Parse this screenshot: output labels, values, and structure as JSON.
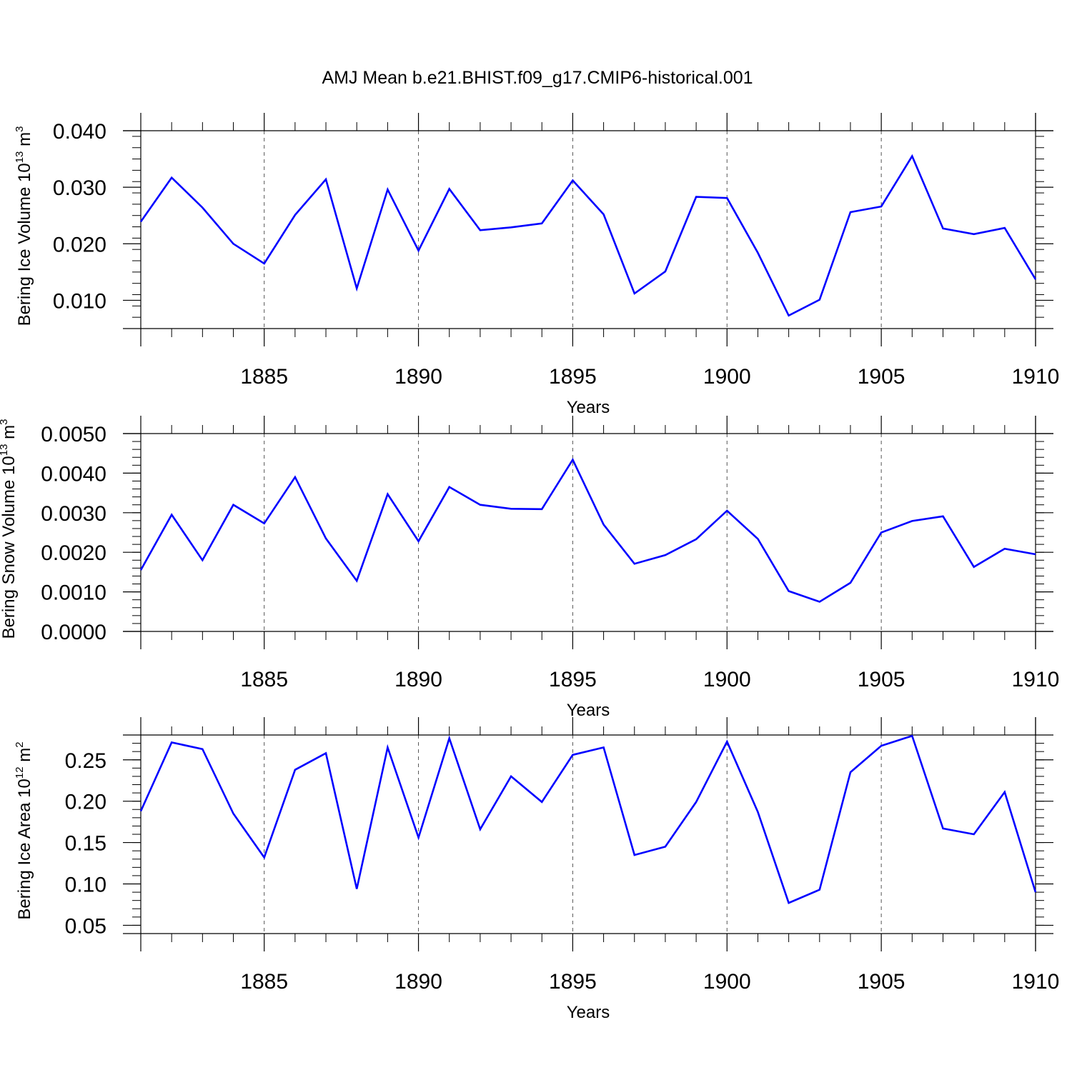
{
  "title": "AMJ Mean b.e21.BHIST.f09_g17.CMIP6-historical.001",
  "colors": {
    "series": "#0000ff",
    "axis": "#000000",
    "grid": "#555555"
  },
  "chart_data": [
    {
      "type": "line",
      "title": "AMJ Mean b.e21.BHIST.f09_g17.CMIP6-historical.001",
      "ylabel": {
        "base": "Bering Ice Volume 10",
        "exp": "13",
        "unit": " m",
        "unitExp": "3"
      },
      "xlabel": "Years",
      "xlim": [
        1881,
        1910
      ],
      "ylim": [
        0.005,
        0.04
      ],
      "yticks": [
        0.01,
        0.02,
        0.03,
        0.04
      ],
      "yticklabels": [
        "0.010",
        "0.020",
        "0.030",
        "0.040"
      ],
      "yminor": 0.002,
      "xticks": [
        1885,
        1890,
        1895,
        1900,
        1905,
        1910
      ],
      "xticklabels": [
        "1885",
        "1890",
        "1895",
        "1900",
        "1905",
        "1910"
      ],
      "grid": "dashed vertical at major x ticks",
      "x": [
        1881,
        1882,
        1883,
        1884,
        1885,
        1886,
        1887,
        1888,
        1889,
        1890,
        1891,
        1892,
        1893,
        1894,
        1895,
        1896,
        1897,
        1898,
        1899,
        1900,
        1901,
        1902,
        1903,
        1904,
        1905,
        1906,
        1907,
        1908,
        1909,
        1910
      ],
      "series": [
        {
          "name": "Bering Ice Volume",
          "values": [
            0.0239,
            0.0317,
            0.0264,
            0.02,
            0.0165,
            0.0251,
            0.0314,
            0.0121,
            0.0296,
            0.0188,
            0.0297,
            0.0224,
            0.0229,
            0.0236,
            0.0312,
            0.0252,
            0.0112,
            0.0151,
            0.0283,
            0.0281,
            0.0184,
            0.0073,
            0.0101,
            0.0256,
            0.0266,
            0.0355,
            0.0227,
            0.0217,
            0.0228,
            0.0137
          ]
        }
      ]
    },
    {
      "type": "line",
      "ylabel": {
        "base": "Bering Snow Volume 10",
        "exp": "13",
        "unit": " m",
        "unitExp": "3"
      },
      "xlabel": "Years",
      "xlim": [
        1881,
        1910
      ],
      "ylim": [
        0.0,
        0.005
      ],
      "yticks": [
        0.0,
        0.001,
        0.002,
        0.003,
        0.004,
        0.005
      ],
      "yticklabels": [
        "0.0000",
        "0.0010",
        "0.0020",
        "0.0030",
        "0.0040",
        "0.0050"
      ],
      "yminor": 0.0002,
      "xticks": [
        1885,
        1890,
        1895,
        1900,
        1905,
        1910
      ],
      "xticklabels": [
        "1885",
        "1890",
        "1895",
        "1900",
        "1905",
        "1910"
      ],
      "grid": "dashed vertical at major x ticks",
      "x": [
        1881,
        1882,
        1883,
        1884,
        1885,
        1886,
        1887,
        1888,
        1889,
        1890,
        1891,
        1892,
        1893,
        1894,
        1895,
        1896,
        1897,
        1898,
        1899,
        1900,
        1901,
        1902,
        1903,
        1904,
        1905,
        1906,
        1907,
        1908,
        1909,
        1910
      ],
      "series": [
        {
          "name": "Bering Snow Volume",
          "values": [
            0.00155,
            0.00295,
            0.0018,
            0.0032,
            0.00273,
            0.0039,
            0.00235,
            0.00128,
            0.00347,
            0.00228,
            0.00365,
            0.0032,
            0.0031,
            0.00309,
            0.00434,
            0.0027,
            0.00171,
            0.00193,
            0.00233,
            0.00305,
            0.00234,
            0.00102,
            0.00075,
            0.00123,
            0.0025,
            0.00279,
            0.00291,
            0.00163,
            0.00209,
            0.00195
          ]
        }
      ]
    },
    {
      "type": "line",
      "ylabel": {
        "base": "Bering Ice Area 10",
        "exp": "12",
        "unit": " m",
        "unitExp": "2"
      },
      "xlabel": "Years",
      "xlim": [
        1881,
        1910
      ],
      "ylim": [
        0.04,
        0.28
      ],
      "yticks": [
        0.05,
        0.1,
        0.15,
        0.2,
        0.25
      ],
      "yticklabels": [
        "0.05",
        "0.10",
        "0.15",
        "0.20",
        "0.25"
      ],
      "yminor": 0.01,
      "xticks": [
        1885,
        1890,
        1895,
        1900,
        1905,
        1910
      ],
      "xticklabels": [
        "1885",
        "1890",
        "1895",
        "1900",
        "1905",
        "1910"
      ],
      "grid": "dashed vertical at major x ticks",
      "x": [
        1881,
        1882,
        1883,
        1884,
        1885,
        1886,
        1887,
        1888,
        1889,
        1890,
        1891,
        1892,
        1893,
        1894,
        1895,
        1896,
        1897,
        1898,
        1899,
        1900,
        1901,
        1902,
        1903,
        1904,
        1905,
        1906,
        1907,
        1908,
        1909,
        1910
      ],
      "series": [
        {
          "name": "Bering Ice Area",
          "values": [
            0.188,
            0.271,
            0.263,
            0.185,
            0.132,
            0.238,
            0.258,
            0.094,
            0.265,
            0.156,
            0.276,
            0.166,
            0.23,
            0.199,
            0.256,
            0.265,
            0.135,
            0.145,
            0.199,
            0.272,
            0.187,
            0.077,
            0.093,
            0.235,
            0.267,
            0.279,
            0.167,
            0.16,
            0.211,
            0.09
          ]
        }
      ]
    }
  ]
}
